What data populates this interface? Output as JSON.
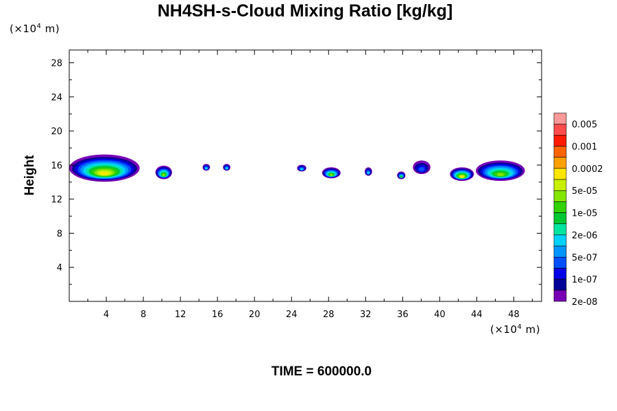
{
  "title": "NH4SH-s-Cloud Mixing Ratio [kg/kg]",
  "y_unit": {
    "prefix": "(×10",
    "exp": "4",
    "suffix": " m)"
  },
  "x_unit": {
    "prefix": "(×10",
    "exp": "4",
    "suffix": " m)"
  },
  "time_label": "TIME = 600000.0",
  "chart_data": {
    "type": "heatmap",
    "title": "NH4SH-s-Cloud Mixing Ratio [kg/kg]",
    "xlabel": "",
    "ylabel": "Height",
    "xlim": [
      0,
      51
    ],
    "ylim": [
      0,
      29.5
    ],
    "x_ticks": [
      4,
      8,
      12,
      16,
      20,
      24,
      28,
      32,
      36,
      40,
      44,
      48
    ],
    "y_ticks": [
      4,
      8,
      12,
      16,
      20,
      24,
      28
    ],
    "colorbar": {
      "labels": [
        "0.005",
        "0.001",
        "0.0002",
        "5e-05",
        "1e-05",
        "2e-06",
        "5e-07",
        "1e-07",
        "2e-08"
      ],
      "colors": [
        "#ff9999",
        "#ff4c4c",
        "#ff1a00",
        "#ff6400",
        "#ffa000",
        "#ffe600",
        "#c8f000",
        "#82e600",
        "#32d200",
        "#00c832",
        "#00e6a0",
        "#00d2ff",
        "#0096ff",
        "#0050ff",
        "#0000e6",
        "#000096",
        "#7800b4"
      ]
    },
    "clouds": [
      {
        "x": [
          0,
          7.6
        ],
        "y": [
          14.2,
          17.4
        ],
        "max_level": "0.0002"
      },
      {
        "x": [
          9.3,
          11.1
        ],
        "y": [
          14.5,
          16.1
        ],
        "max_level": "5e-05"
      },
      {
        "x": [
          14.4,
          15.2
        ],
        "y": [
          15.5,
          16.3
        ],
        "max_level": "2e-06"
      },
      {
        "x": [
          16.6,
          17.4
        ],
        "y": [
          15.5,
          16.3
        ],
        "max_level": "2e-06"
      },
      {
        "x": [
          24.6,
          25.6
        ],
        "y": [
          15.4,
          16.2
        ],
        "max_level": "2e-06"
      },
      {
        "x": [
          27.3,
          29.3
        ],
        "y": [
          14.6,
          15.9
        ],
        "max_level": "5e-05"
      },
      {
        "x": [
          31.9,
          32.7
        ],
        "y": [
          14.9,
          15.9
        ],
        "max_level": "2e-06"
      },
      {
        "x": [
          35.4,
          36.3
        ],
        "y": [
          14.5,
          15.4
        ],
        "max_level": "1e-05"
      },
      {
        "x": [
          37.1,
          39.0
        ],
        "y": [
          15.1,
          16.7
        ],
        "max_level": "5e-07"
      },
      {
        "x": [
          41.1,
          43.7
        ],
        "y": [
          14.3,
          15.9
        ],
        "max_level": "0.0002"
      },
      {
        "x": [
          43.9,
          49.2
        ],
        "y": [
          14.3,
          16.7
        ],
        "max_level": "5e-05"
      }
    ]
  }
}
